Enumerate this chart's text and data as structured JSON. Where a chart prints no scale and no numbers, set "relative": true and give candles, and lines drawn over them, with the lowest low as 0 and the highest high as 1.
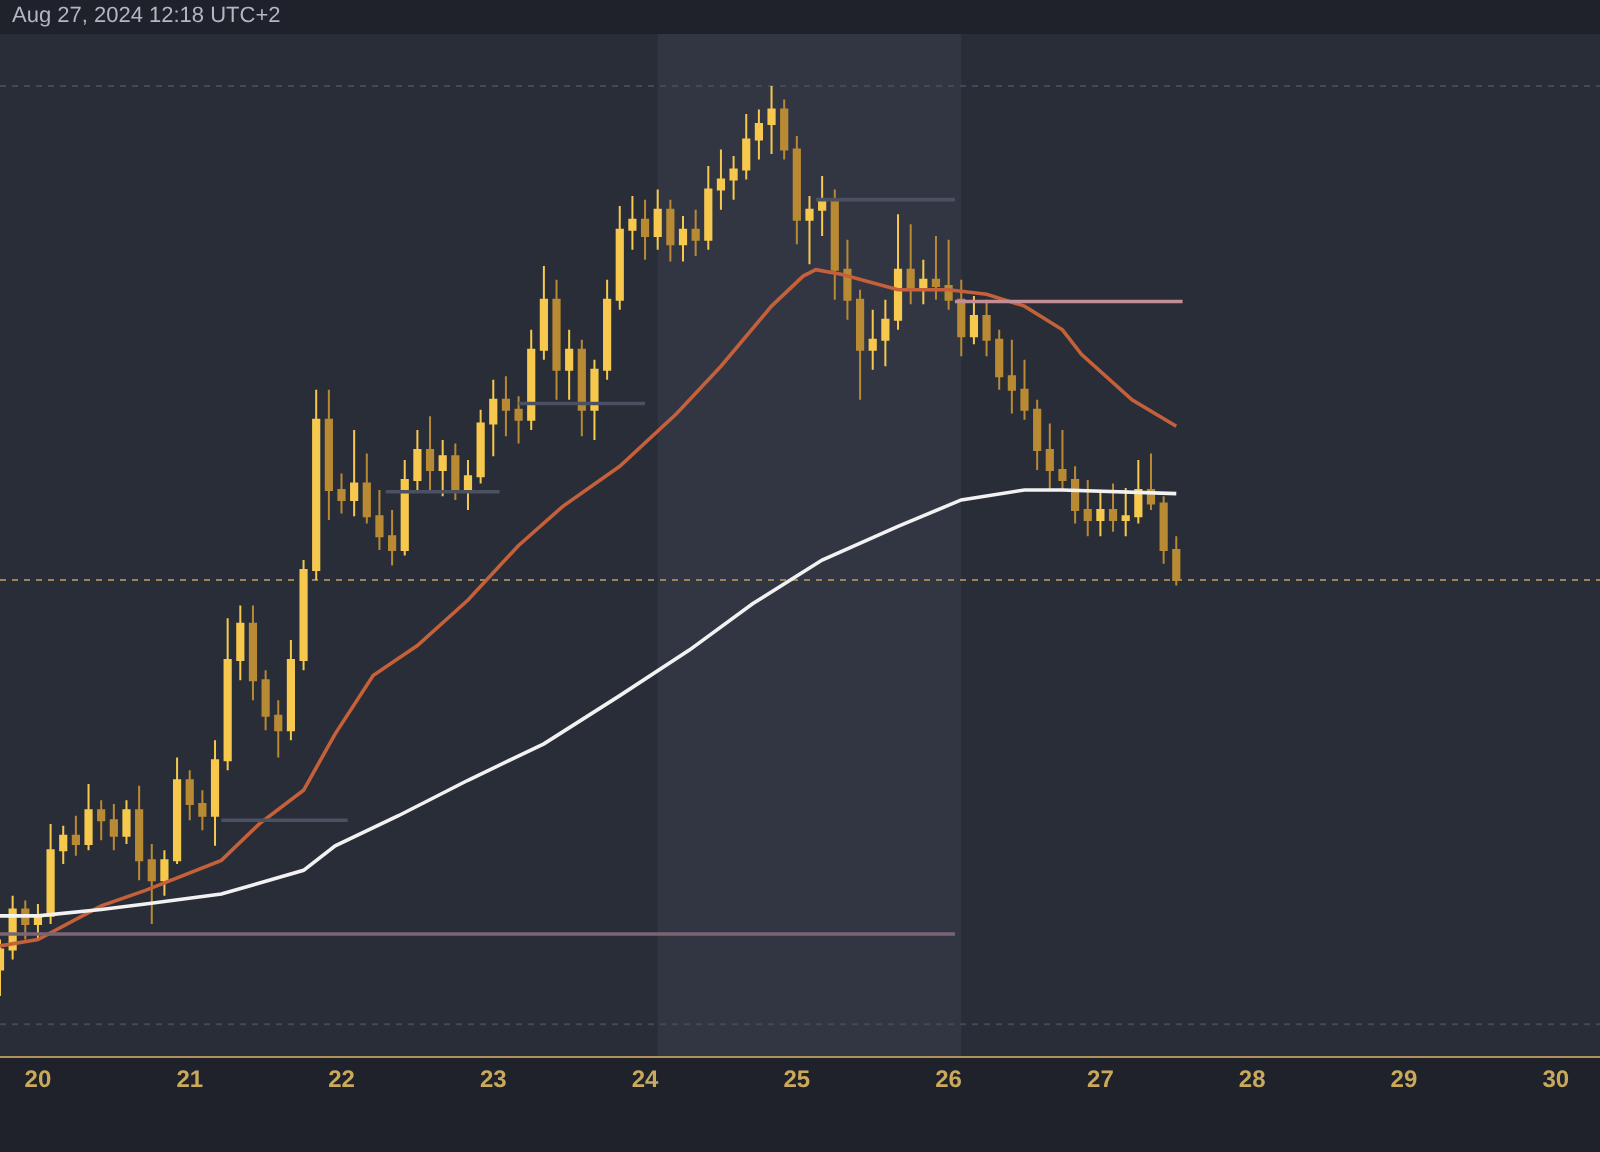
{
  "chart_data": {
    "type": "candlestick",
    "relative": true,
    "colors": [
      "#f6c94e",
      "#f6c94e",
      "#b98a34",
      "#f6c94e",
      "#f6c94e",
      "#f6c94e",
      "#b98a34",
      "#f6c94e",
      "#b98a34",
      "#b98a34",
      "#f6c94e",
      "#b98a34",
      "#b98a34",
      "#f6c94e",
      "#f6c94e",
      "#b98a34",
      "#b98a34",
      "#f6c94e",
      "#f6c94e",
      "#f6c94e",
      "#b98a34",
      "#b98a34",
      "#b98a34",
      "#f6c94e",
      "#f6c94e",
      "#f6c94e",
      "#b98a34",
      "#b98a34",
      "#f6c94e",
      "#b98a34",
      "#b98a34",
      "#b98a34",
      "#f6c94e",
      "#f6c94e",
      "#b98a34",
      "#f6c94e",
      "#b98a34",
      "#f6c94e",
      "#f6c94e",
      "#f6c94e",
      "#b98a34",
      "#b98a34",
      "#f6c94e",
      "#f6c94e",
      "#b98a34",
      "#f6c94e",
      "#b98a34",
      "#f6c94e",
      "#f6c94e",
      "#f6c94e",
      "#f6c94e",
      "#b98a34",
      "#f6c94e",
      "#b98a34",
      "#f6c94e",
      "#b98a34",
      "#f6c94e",
      "#f6c94e",
      "#f6c94e",
      "#f6c94e",
      "#f6c94e",
      "#f6c94e",
      "#b98a34",
      "#b98a34",
      "#f6c94e",
      "#f6c94e",
      "#b98a34",
      "#b98a34",
      "#b98a34",
      "#f6c94e",
      "#f6c94e",
      "#f6c94e",
      "#b98a34",
      "#f6c94e",
      "#b98a34",
      "#b98a34",
      "#b98a34",
      "#f6c94e",
      "#b98a34",
      "#b98a34",
      "#b98a34",
      "#b98a34",
      "#b98a34",
      "#b98a34",
      "#b98a34",
      "#b98a34",
      "#b98a34",
      "#f6c94e",
      "#b98a34",
      "#f6c94e",
      "#f6c94e",
      "#b98a34",
      "#b98a34",
      "#b98a34"
    ],
    "annotations": [
      "Aug 27, 2024 12:18 UTC+2"
    ],
    "x": [
      "2024-08-19T18:00",
      "2024-08-19T20:00",
      "2024-08-19T22:00",
      "2024-08-20T00:00",
      "2024-08-20T02:00",
      "2024-08-20T04:00",
      "2024-08-20T06:00",
      "2024-08-20T08:00",
      "2024-08-20T10:00",
      "2024-08-20T12:00",
      "2024-08-20T14:00",
      "2024-08-20T16:00",
      "2024-08-20T18:00",
      "2024-08-20T20:00",
      "2024-08-20T22:00",
      "2024-08-21T00:00",
      "2024-08-21T02:00",
      "2024-08-21T04:00",
      "2024-08-21T06:00",
      "2024-08-21T08:00",
      "2024-08-21T10:00",
      "2024-08-21T12:00",
      "2024-08-21T14:00",
      "2024-08-21T16:00",
      "2024-08-21T18:00",
      "2024-08-21T20:00",
      "2024-08-21T22:00",
      "2024-08-22T00:00",
      "2024-08-22T02:00",
      "2024-08-22T04:00",
      "2024-08-22T06:00",
      "2024-08-22T08:00",
      "2024-08-22T10:00",
      "2024-08-22T12:00",
      "2024-08-22T14:00",
      "2024-08-22T16:00",
      "2024-08-22T18:00",
      "2024-08-22T20:00",
      "2024-08-22T22:00",
      "2024-08-23T00:00",
      "2024-08-23T02:00",
      "2024-08-23T04:00",
      "2024-08-23T06:00",
      "2024-08-23T08:00",
      "2024-08-23T10:00",
      "2024-08-23T12:00",
      "2024-08-23T14:00",
      "2024-08-23T16:00",
      "2024-08-23T18:00",
      "2024-08-23T20:00",
      "2024-08-23T22:00",
      "2024-08-24T00:00",
      "2024-08-24T02:00",
      "2024-08-24T04:00",
      "2024-08-24T06:00",
      "2024-08-24T08:00",
      "2024-08-24T10:00",
      "2024-08-24T12:00",
      "2024-08-24T14:00",
      "2024-08-24T16:00",
      "2024-08-24T18:00",
      "2024-08-24T20:00",
      "2024-08-24T22:00",
      "2024-08-25T00:00",
      "2024-08-25T02:00",
      "2024-08-25T04:00",
      "2024-08-25T06:00",
      "2024-08-25T08:00",
      "2024-08-25T10:00",
      "2024-08-25T12:00",
      "2024-08-25T14:00",
      "2024-08-25T16:00",
      "2024-08-25T18:00",
      "2024-08-25T20:00",
      "2024-08-25T22:00",
      "2024-08-26T00:00",
      "2024-08-26T02:00",
      "2024-08-26T04:00",
      "2024-08-26T06:00",
      "2024-08-26T08:00",
      "2024-08-26T10:00",
      "2024-08-26T12:00",
      "2024-08-26T14:00",
      "2024-08-26T16:00",
      "2024-08-26T18:00",
      "2024-08-26T20:00",
      "2024-08-26T22:00",
      "2024-08-27T00:00",
      "2024-08-27T02:00",
      "2024-08-27T04:00",
      "2024-08-27T06:00",
      "2024-08-27T08:00",
      "2024-08-27T10:00",
      "2024-08-27T12:00"
    ],
    "ohlc": [
      [
        0.029,
        0.062,
        0,
        0.051
      ],
      [
        0.051,
        0.11,
        0.04,
        0.095
      ],
      [
        0.095,
        0.105,
        0.062,
        0.079
      ],
      [
        0.079,
        0.101,
        0.062,
        0.088
      ],
      [
        0.088,
        0.189,
        0.079,
        0.16
      ],
      [
        0.16,
        0.187,
        0.145,
        0.176
      ],
      [
        0.176,
        0.198,
        0.154,
        0.167
      ],
      [
        0.167,
        0.233,
        0.16,
        0.204
      ],
      [
        0.204,
        0.215,
        0.171,
        0.193
      ],
      [
        0.193,
        0.211,
        0.16,
        0.176
      ],
      [
        0.176,
        0.215,
        0.167,
        0.204
      ],
      [
        0.204,
        0.231,
        0.127,
        0.149
      ],
      [
        0.149,
        0.167,
        0.079,
        0.127
      ],
      [
        0.127,
        0.16,
        0.11,
        0.149
      ],
      [
        0.149,
        0.262,
        0.145,
        0.237
      ],
      [
        0.237,
        0.248,
        0.193,
        0.211
      ],
      [
        0.211,
        0.226,
        0.182,
        0.198
      ],
      [
        0.198,
        0.281,
        0.165,
        0.259
      ],
      [
        0.259,
        0.415,
        0.248,
        0.369
      ],
      [
        0.369,
        0.429,
        0.347,
        0.409
      ],
      [
        0.409,
        0.429,
        0.325,
        0.347
      ],
      [
        0.347,
        0.358,
        0.292,
        0.308
      ],
      [
        0.308,
        0.325,
        0.262,
        0.292
      ],
      [
        0.292,
        0.391,
        0.281,
        0.369
      ],
      [
        0.369,
        0.479,
        0.358,
        0.468
      ],
      [
        0.468,
        0.666,
        0.457,
        0.633
      ],
      [
        0.633,
        0.666,
        0.523,
        0.556
      ],
      [
        0.556,
        0.574,
        0.53,
        0.545
      ],
      [
        0.545,
        0.622,
        0.527,
        0.563
      ],
      [
        0.563,
        0.596,
        0.519,
        0.527
      ],
      [
        0.527,
        0.556,
        0.49,
        0.505
      ],
      [
        0.505,
        0.534,
        0.473,
        0.49
      ],
      [
        0.49,
        0.589,
        0.484,
        0.567
      ],
      [
        0.567,
        0.622,
        0.556,
        0.6
      ],
      [
        0.6,
        0.637,
        0.556,
        0.578
      ],
      [
        0.578,
        0.611,
        0.549,
        0.593
      ],
      [
        0.593,
        0.607,
        0.545,
        0.556
      ],
      [
        0.556,
        0.589,
        0.534,
        0.571
      ],
      [
        0.571,
        0.644,
        0.563,
        0.629
      ],
      [
        0.629,
        0.677,
        0.593,
        0.655
      ],
      [
        0.655,
        0.681,
        0.615,
        0.644
      ],
      [
        0.644,
        0.659,
        0.607,
        0.633
      ],
      [
        0.633,
        0.732,
        0.622,
        0.71
      ],
      [
        0.71,
        0.802,
        0.699,
        0.765
      ],
      [
        0.765,
        0.787,
        0.655,
        0.688
      ],
      [
        0.688,
        0.732,
        0.655,
        0.71
      ],
      [
        0.71,
        0.721,
        0.615,
        0.644
      ],
      [
        0.644,
        0.699,
        0.611,
        0.688
      ],
      [
        0.688,
        0.787,
        0.677,
        0.765
      ],
      [
        0.765,
        0.868,
        0.754,
        0.842
      ],
      [
        0.842,
        0.879,
        0.82,
        0.853
      ],
      [
        0.853,
        0.875,
        0.809,
        0.835
      ],
      [
        0.835,
        0.886,
        0.82,
        0.864
      ],
      [
        0.864,
        0.875,
        0.807,
        0.826
      ],
      [
        0.826,
        0.857,
        0.807,
        0.842
      ],
      [
        0.842,
        0.864,
        0.813,
        0.831
      ],
      [
        0.831,
        0.912,
        0.82,
        0.886
      ],
      [
        0.886,
        0.93,
        0.864,
        0.897
      ],
      [
        0.897,
        0.923,
        0.875,
        0.908
      ],
      [
        0.908,
        0.969,
        0.897,
        0.941
      ],
      [
        0.941,
        0.974,
        0.919,
        0.958
      ],
      [
        0.958,
        1,
        0.925,
        0.974
      ],
      [
        0.974,
        0.985,
        0.919,
        0.93
      ],
      [
        0.93,
        0.945,
        0.826,
        0.853
      ],
      [
        0.853,
        0.879,
        0.804,
        0.864
      ],
      [
        0.864,
        0.901,
        0.835,
        0.875
      ],
      [
        0.875,
        0.886,
        0.765,
        0.798
      ],
      [
        0.798,
        0.831,
        0.743,
        0.765
      ],
      [
        0.765,
        0.776,
        0.655,
        0.71
      ],
      [
        0.71,
        0.754,
        0.688,
        0.721
      ],
      [
        0.721,
        0.765,
        0.692,
        0.743
      ],
      [
        0.743,
        0.859,
        0.732,
        0.798
      ],
      [
        0.798,
        0.848,
        0.76,
        0.776
      ],
      [
        0.776,
        0.809,
        0.76,
        0.787
      ],
      [
        0.787,
        0.835,
        0.765,
        0.78
      ],
      [
        0.78,
        0.831,
        0.754,
        0.765
      ],
      [
        0.765,
        0.787,
        0.703,
        0.725
      ],
      [
        0.725,
        0.769,
        0.716,
        0.747
      ],
      [
        0.747,
        0.765,
        0.703,
        0.721
      ],
      [
        0.721,
        0.732,
        0.666,
        0.681
      ],
      [
        0.681,
        0.721,
        0.64,
        0.666
      ],
      [
        0.666,
        0.699,
        0.633,
        0.644
      ],
      [
        0.644,
        0.655,
        0.578,
        0.6
      ],
      [
        0.6,
        0.629,
        0.556,
        0.578
      ],
      [
        0.578,
        0.622,
        0.556,
        0.567
      ],
      [
        0.567,
        0.582,
        0.519,
        0.534
      ],
      [
        0.534,
        0.567,
        0.505,
        0.523
      ],
      [
        0.523,
        0.556,
        0.505,
        0.534
      ],
      [
        0.534,
        0.563,
        0.51,
        0.523
      ],
      [
        0.523,
        0.558,
        0.505,
        0.527
      ],
      [
        0.527,
        0.589,
        0.519,
        0.556
      ],
      [
        0.556,
        0.596,
        0.534,
        0.541
      ],
      [
        0.541,
        0.549,
        0.475,
        0.49
      ],
      [
        0.49,
        0.505,
        0.451,
        0.457
      ]
    ],
    "series": [
      {
        "type": "line",
        "color": "#c4603a",
        "x": [
          "2024-08-19T18:00",
          "2024-08-20T00:00",
          "2024-08-20T10:00",
          "2024-08-20T17:00",
          "2024-08-21T05:00",
          "2024-08-21T11:00",
          "2024-08-21T18:00",
          "2024-08-21T23:00",
          "2024-08-22T05:00",
          "2024-08-22T12:00",
          "2024-08-22T20:00",
          "2024-08-23T04:00",
          "2024-08-23T11:00",
          "2024-08-23T20:00",
          "2024-08-24T05:00",
          "2024-08-24T12:00",
          "2024-08-24T20:00",
          "2024-08-25T01:00",
          "2024-08-25T03:00",
          "2024-08-25T07:00",
          "2024-08-25T16:00",
          "2024-08-26T00:00",
          "2024-08-26T06:00",
          "2024-08-26T12:00",
          "2024-08-26T18:00",
          "2024-08-26T21:00",
          "2024-08-27T05:00",
          "2024-08-27T12:00"
        ],
        "values": [
          0.055,
          0.062,
          0.099,
          0.116,
          0.149,
          0.189,
          0.226,
          0.288,
          0.352,
          0.385,
          0.435,
          0.495,
          0.538,
          0.582,
          0.64,
          0.692,
          0.758,
          0.791,
          0.798,
          0.793,
          0.776,
          0.776,
          0.771,
          0.758,
          0.732,
          0.705,
          0.655,
          0.626
        ]
      },
      {
        "type": "line",
        "color": "#f2f2f2",
        "x": [
          "2024-08-19T18:00",
          "2024-08-20T00:00",
          "2024-08-20T10:00",
          "2024-08-20T17:00",
          "2024-08-21T05:00",
          "2024-08-21T18:00",
          "2024-08-21T23:00",
          "2024-08-22T09:00",
          "2024-08-22T20:00",
          "2024-08-23T08:00",
          "2024-08-23T20:00",
          "2024-08-24T07:00",
          "2024-08-24T17:00",
          "2024-08-25T04:00",
          "2024-08-25T16:00",
          "2024-08-26T02:00",
          "2024-08-26T12:00",
          "2024-08-26T18:00",
          "2024-08-27T12:00"
        ],
        "values": [
          0.088,
          0.088,
          0.095,
          0.101,
          0.112,
          0.138,
          0.165,
          0.198,
          0.237,
          0.277,
          0.33,
          0.38,
          0.431,
          0.479,
          0.516,
          0.545,
          0.556,
          0.556,
          0.552
        ]
      },
      {
        "type": "line",
        "color": "#7d6473",
        "x": [
          "2024-08-19T18:00",
          "2024-08-26T01:00"
        ],
        "values": [
          0.068,
          0.068
        ]
      },
      {
        "type": "line",
        "color": "#c48e96",
        "x": [
          "2024-08-26T01:00",
          "2024-08-27T13:00"
        ],
        "values": [
          0.763,
          0.763
        ]
      },
      {
        "type": "line",
        "color": "#4c5162",
        "x": [
          "2024-08-25T03:00",
          "2024-08-26T01:00"
        ],
        "values": [
          0.875,
          0.875
        ]
      },
      {
        "type": "line",
        "color": "#4c5162",
        "x": [
          "2024-08-23T04:00",
          "2024-08-24T00:00"
        ],
        "values": [
          0.651,
          0.651
        ]
      },
      {
        "type": "line",
        "color": "#4c5162",
        "x": [
          "2024-08-22T07:00",
          "2024-08-23T01:00"
        ],
        "values": [
          0.554,
          0.554
        ]
      },
      {
        "type": "line",
        "color": "#4c5162",
        "x": [
          "2024-08-21T05:00",
          "2024-08-22T01:00"
        ],
        "values": [
          0.193,
          0.193
        ]
      }
    ],
    "ref_lines": [
      {
        "axis": "y",
        "value": 0.457,
        "color": "#9a8556",
        "line_style": "dotted"
      },
      {
        "axis": "y",
        "value": 1,
        "color": "#444857",
        "line_style": "dotted"
      },
      {
        "axis": "y",
        "value": -0.031,
        "color": "#444857",
        "line_style": "dotted"
      }
    ],
    "bands": [
      {
        "axis": "x",
        "from": "2024-08-24T02:00",
        "to": "2024-08-26T02:00",
        "color": "#323643"
      }
    ],
    "xlim": [
      "2024-08-19T18:00",
      "2024-08-30T07:00"
    ],
    "xticks": [
      {
        "value": "2024-08-20",
        "label": "20"
      },
      {
        "value": "2024-08-21",
        "label": "21"
      },
      {
        "value": "2024-08-22",
        "label": "22"
      },
      {
        "value": "2024-08-23",
        "label": "23"
      },
      {
        "value": "2024-08-24",
        "label": "24"
      },
      {
        "value": "2024-08-25",
        "label": "25"
      },
      {
        "value": "2024-08-26",
        "label": "26"
      },
      {
        "value": "2024-08-27",
        "label": "27"
      },
      {
        "value": "2024-08-28",
        "label": "28"
      },
      {
        "value": "2024-08-29",
        "label": "29"
      },
      {
        "value": "2024-08-30",
        "label": "30"
      }
    ]
  }
}
